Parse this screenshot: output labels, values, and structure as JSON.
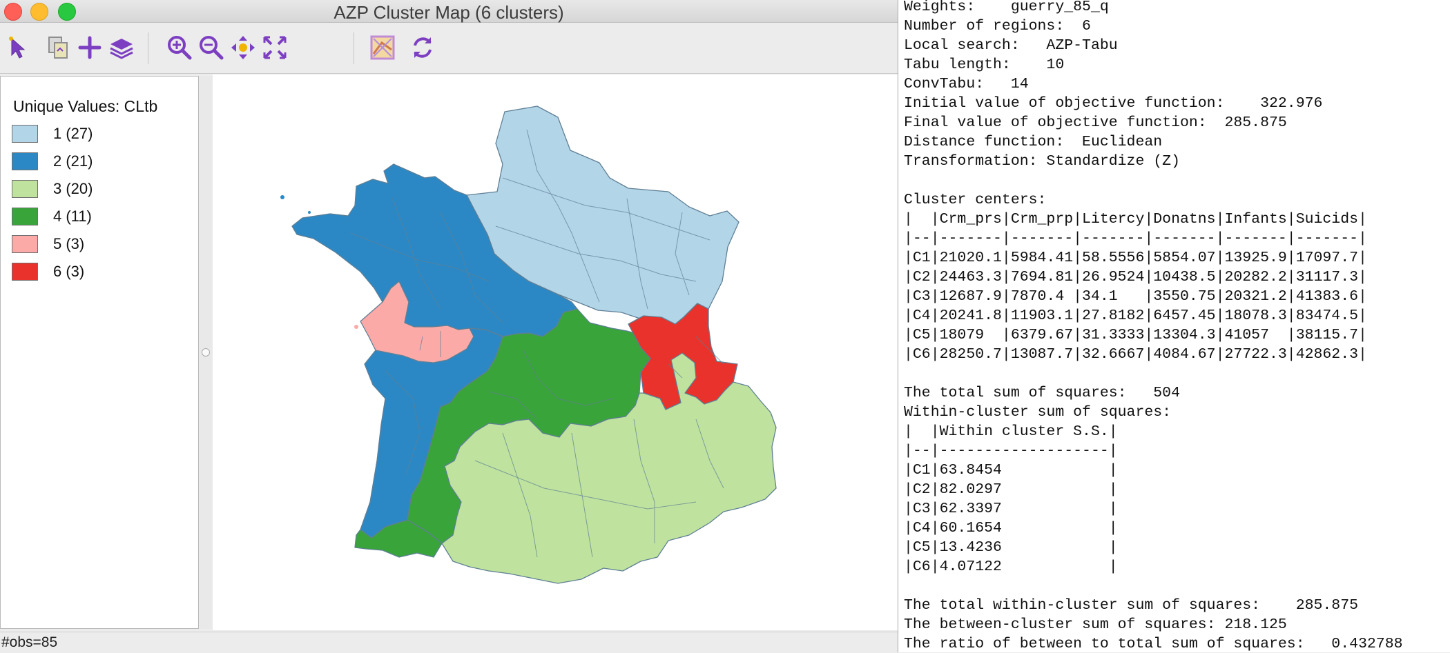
{
  "window": {
    "title": "AZP Cluster Map (6 clusters)"
  },
  "toolbar": {
    "buttons": [
      {
        "name": "select-tool",
        "icon": "pointer-icon"
      },
      {
        "name": "copy-image",
        "icon": "copy-icon"
      },
      {
        "name": "add-layer",
        "icon": "plus-icon"
      },
      {
        "name": "layers",
        "icon": "layers-icon"
      },
      {
        "name": "zoom-in",
        "icon": "zoom-in-icon"
      },
      {
        "name": "zoom-out",
        "icon": "zoom-out-icon"
      },
      {
        "name": "pan",
        "icon": "pan-icon"
      },
      {
        "name": "fit-extent",
        "icon": "fit-extent-icon"
      },
      {
        "name": "basemap",
        "icon": "basemap-icon"
      },
      {
        "name": "refresh",
        "icon": "refresh-icon"
      }
    ]
  },
  "legend": {
    "title": "Unique Values: CLtb",
    "items": [
      {
        "label": "1 (27)",
        "color": "#b3d5e8"
      },
      {
        "label": "2 (21)",
        "color": "#2c88c4"
      },
      {
        "label": "3 (20)",
        "color": "#bfe39e"
      },
      {
        "label": "4 (11)",
        "color": "#39a43a"
      },
      {
        "label": "5 (3)",
        "color": "#fbaaa8"
      },
      {
        "label": "6 (3)",
        "color": "#e8322b"
      }
    ]
  },
  "status": {
    "text": "#obs=85"
  },
  "console": {
    "lines": [
      "Weights:    guerry_85_q",
      "Number of regions:  6",
      "Local search:   AZP-Tabu",
      "Tabu length:    10",
      "ConvTabu:   14",
      "Initial value of objective function:    322.976",
      "Final value of objective function:  285.875",
      "Distance function:  Euclidean",
      "Transformation: Standardize (Z)",
      "",
      "Cluster centers:",
      "|  |Crm_prs|Crm_prp|Litercy|Donatns|Infants|Suicids|",
      "|--|-------|-------|-------|-------|-------|-------|",
      "|C1|21020.1|5984.41|58.5556|5854.07|13925.9|17097.7|",
      "|C2|24463.3|7694.81|26.9524|10438.5|20282.2|31117.3|",
      "|C3|12687.9|7870.4 |34.1   |3550.75|20321.2|41383.6|",
      "|C4|20241.8|11903.1|27.8182|6457.45|18078.3|83474.5|",
      "|C5|18079  |6379.67|31.3333|13304.3|41057  |38115.7|",
      "|C6|28250.7|13087.7|32.6667|4084.67|27722.3|42862.3|",
      "",
      "The total sum of squares:   504",
      "Within-cluster sum of squares:",
      "|  |Within cluster S.S.|",
      "|--|-------------------|",
      "|C1|63.8454            |",
      "|C2|82.0297            |",
      "|C3|62.3397            |",
      "|C4|60.1654            |",
      "|C5|13.4236            |",
      "|C6|4.07122            |",
      "",
      "The total within-cluster sum of squares:    285.875",
      "The between-cluster sum of squares: 218.125",
      "The ratio of between to total sum of squares:   0.432788"
    ]
  }
}
